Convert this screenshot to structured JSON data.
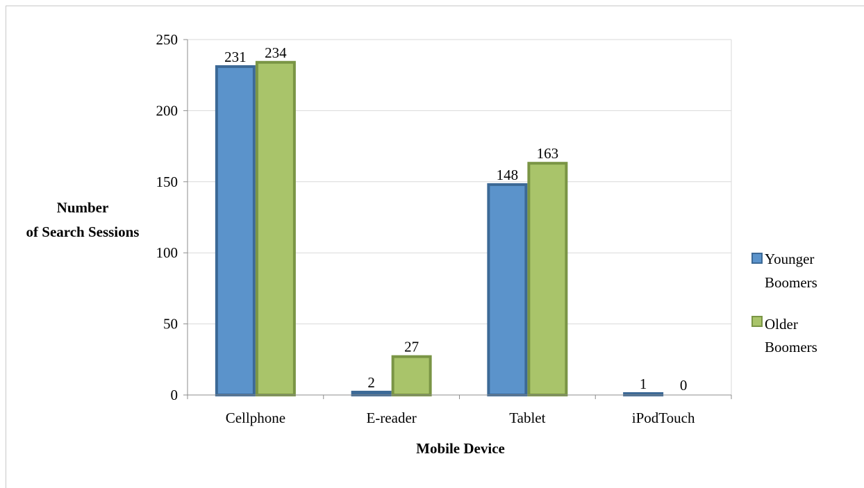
{
  "chart_data": {
    "type": "bar",
    "title": "",
    "xlabel": "Mobile Device",
    "ylabel_lines": [
      "Number",
      "of Search Sessions"
    ],
    "categories": [
      "Cellphone",
      "E-reader",
      "Tablet",
      "iPodTouch"
    ],
    "series": [
      {
        "name_lines": [
          "Younger",
          "Boomers"
        ],
        "values": [
          231,
          2,
          148,
          1
        ],
        "color": "#5b93cb",
        "edge": "#3c6996"
      },
      {
        "name_lines": [
          "Older",
          "Boomers"
        ],
        "values": [
          234,
          27,
          163,
          0
        ],
        "color": "#a9c46a",
        "edge": "#7a9545"
      }
    ],
    "data_labels": [
      [
        "231",
        "2",
        "148",
        "1"
      ],
      [
        "234",
        "27",
        "163",
        "0"
      ]
    ],
    "ylim": [
      0,
      250
    ],
    "yticks": [
      "0",
      "50",
      "100",
      "150",
      "200",
      "250"
    ],
    "grid": true,
    "legend_position": "right"
  }
}
